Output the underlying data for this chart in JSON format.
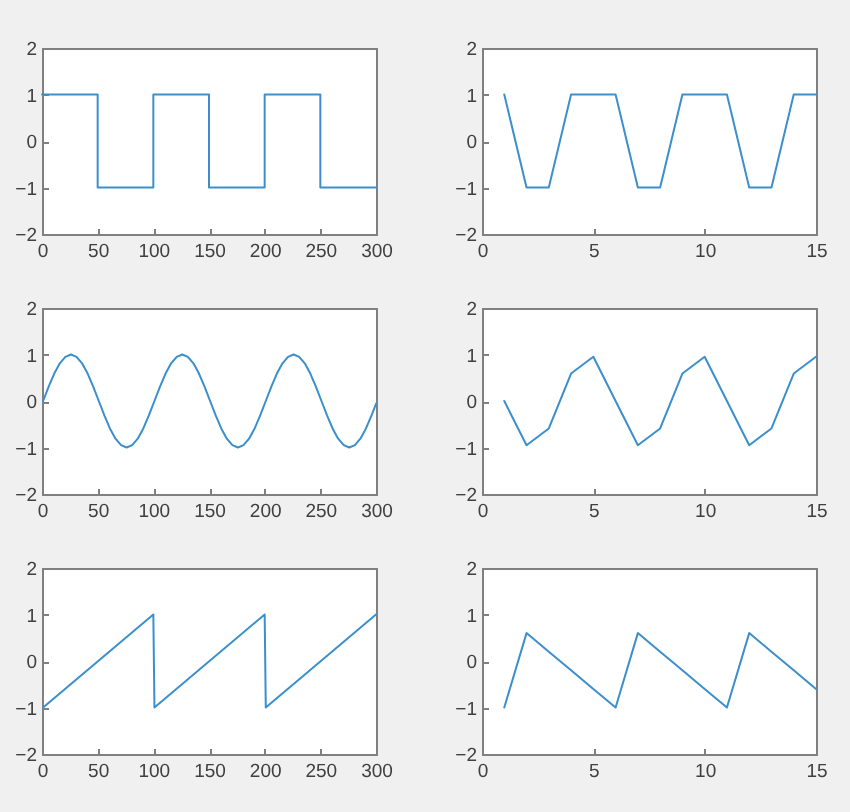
{
  "chart_data": [
    {
      "type": "line",
      "x": [
        0,
        50,
        50,
        100,
        100,
        150,
        150,
        200,
        200,
        250,
        250,
        300
      ],
      "values": [
        1,
        1,
        -1,
        -1,
        1,
        1,
        -1,
        -1,
        1,
        1,
        -1,
        -1
      ],
      "color": "#3a8fcc",
      "xlim": [
        0,
        300
      ],
      "xticks": [
        0,
        50,
        100,
        150,
        200,
        250,
        300
      ],
      "ylim": [
        -2,
        2
      ],
      "yticks": [
        -2,
        -1,
        0,
        1,
        2
      ]
    },
    {
      "type": "line",
      "x": [
        1,
        2,
        3,
        4,
        5,
        6,
        7,
        8,
        9,
        10,
        11,
        12,
        13,
        14,
        15
      ],
      "values": [
        1,
        -1,
        -1,
        1,
        1,
        1,
        -1,
        -1,
        1,
        1,
        1,
        -1,
        -1,
        1,
        1
      ],
      "color": "#3a8fcc",
      "xlim": [
        0,
        15
      ],
      "xticks": [
        0,
        5,
        10,
        15
      ],
      "ylim": [
        -2,
        2
      ],
      "yticks": [
        -2,
        -1,
        0,
        1,
        2
      ]
    },
    {
      "type": "line",
      "x": [
        1,
        6,
        11,
        16,
        21,
        26,
        31,
        36,
        41,
        46,
        51,
        56,
        61,
        66,
        71,
        76,
        81,
        86,
        91,
        96,
        101,
        106,
        111,
        116,
        121,
        126,
        131,
        136,
        141,
        146,
        151,
        156,
        161,
        166,
        171,
        176,
        181,
        186,
        191,
        196,
        201,
        206,
        211,
        216,
        221,
        226,
        231,
        236,
        241,
        246,
        251,
        256,
        261,
        266,
        271,
        276,
        281,
        286,
        291,
        296,
        300
      ],
      "values": [
        0,
        0.31,
        0.59,
        0.81,
        0.95,
        1,
        0.95,
        0.81,
        0.59,
        0.31,
        0,
        -0.31,
        -0.59,
        -0.81,
        -0.95,
        -1,
        -0.95,
        -0.81,
        -0.59,
        -0.31,
        0,
        0.31,
        0.59,
        0.81,
        0.95,
        1,
        0.95,
        0.81,
        0.59,
        0.31,
        0,
        -0.31,
        -0.59,
        -0.81,
        -0.95,
        -1,
        -0.95,
        -0.81,
        -0.59,
        -0.31,
        0,
        0.31,
        0.59,
        0.81,
        0.95,
        1,
        0.95,
        0.81,
        0.59,
        0.31,
        0,
        -0.31,
        -0.59,
        -0.81,
        -0.95,
        -1,
        -0.95,
        -0.81,
        -0.59,
        -0.31,
        -0.06
      ],
      "color": "#3a8fcc",
      "xlim": [
        0,
        300
      ],
      "xticks": [
        0,
        50,
        100,
        150,
        200,
        250,
        300
      ],
      "ylim": [
        -2,
        2
      ],
      "yticks": [
        -2,
        -1,
        0,
        1,
        2
      ]
    },
    {
      "type": "line",
      "x": [
        1,
        2,
        3,
        4,
        5,
        6,
        7,
        8,
        9,
        10,
        11,
        12,
        13,
        14,
        15
      ],
      "values": [
        0,
        -0.95,
        -0.59,
        0.59,
        0.95,
        0,
        -0.95,
        -0.59,
        0.59,
        0.95,
        0,
        -0.95,
        -0.59,
        0.59,
        0.95
      ],
      "color": "#3a8fcc",
      "xlim": [
        0,
        15
      ],
      "xticks": [
        0,
        5,
        10,
        15
      ],
      "ylim": [
        -2,
        2
      ],
      "yticks": [
        -2,
        -1,
        0,
        1,
        2
      ]
    },
    {
      "type": "line",
      "x": [
        1,
        100,
        101,
        200,
        201,
        300
      ],
      "values": [
        -1,
        1,
        -1,
        1,
        -1,
        1
      ],
      "color": "#3a8fcc",
      "xlim": [
        0,
        300
      ],
      "xticks": [
        0,
        50,
        100,
        150,
        200,
        250,
        300
      ],
      "ylim": [
        -2,
        2
      ],
      "yticks": [
        -2,
        -1,
        0,
        1,
        2
      ]
    },
    {
      "type": "line",
      "x": [
        1,
        2,
        3,
        4,
        5,
        6,
        7,
        8,
        9,
        10,
        11,
        12,
        13,
        14,
        15
      ],
      "values": [
        -1,
        0.6,
        0.2,
        -0.2,
        -0.6,
        -1,
        0.6,
        0.2,
        -0.2,
        -0.6,
        -1,
        0.6,
        0.2,
        -0.2,
        -0.6
      ],
      "color": "#3a8fcc",
      "xlim": [
        0,
        15
      ],
      "xticks": [
        0,
        5,
        10,
        15
      ],
      "ylim": [
        -2,
        2
      ],
      "yticks": [
        -2,
        -1,
        0,
        1,
        2
      ]
    }
  ]
}
